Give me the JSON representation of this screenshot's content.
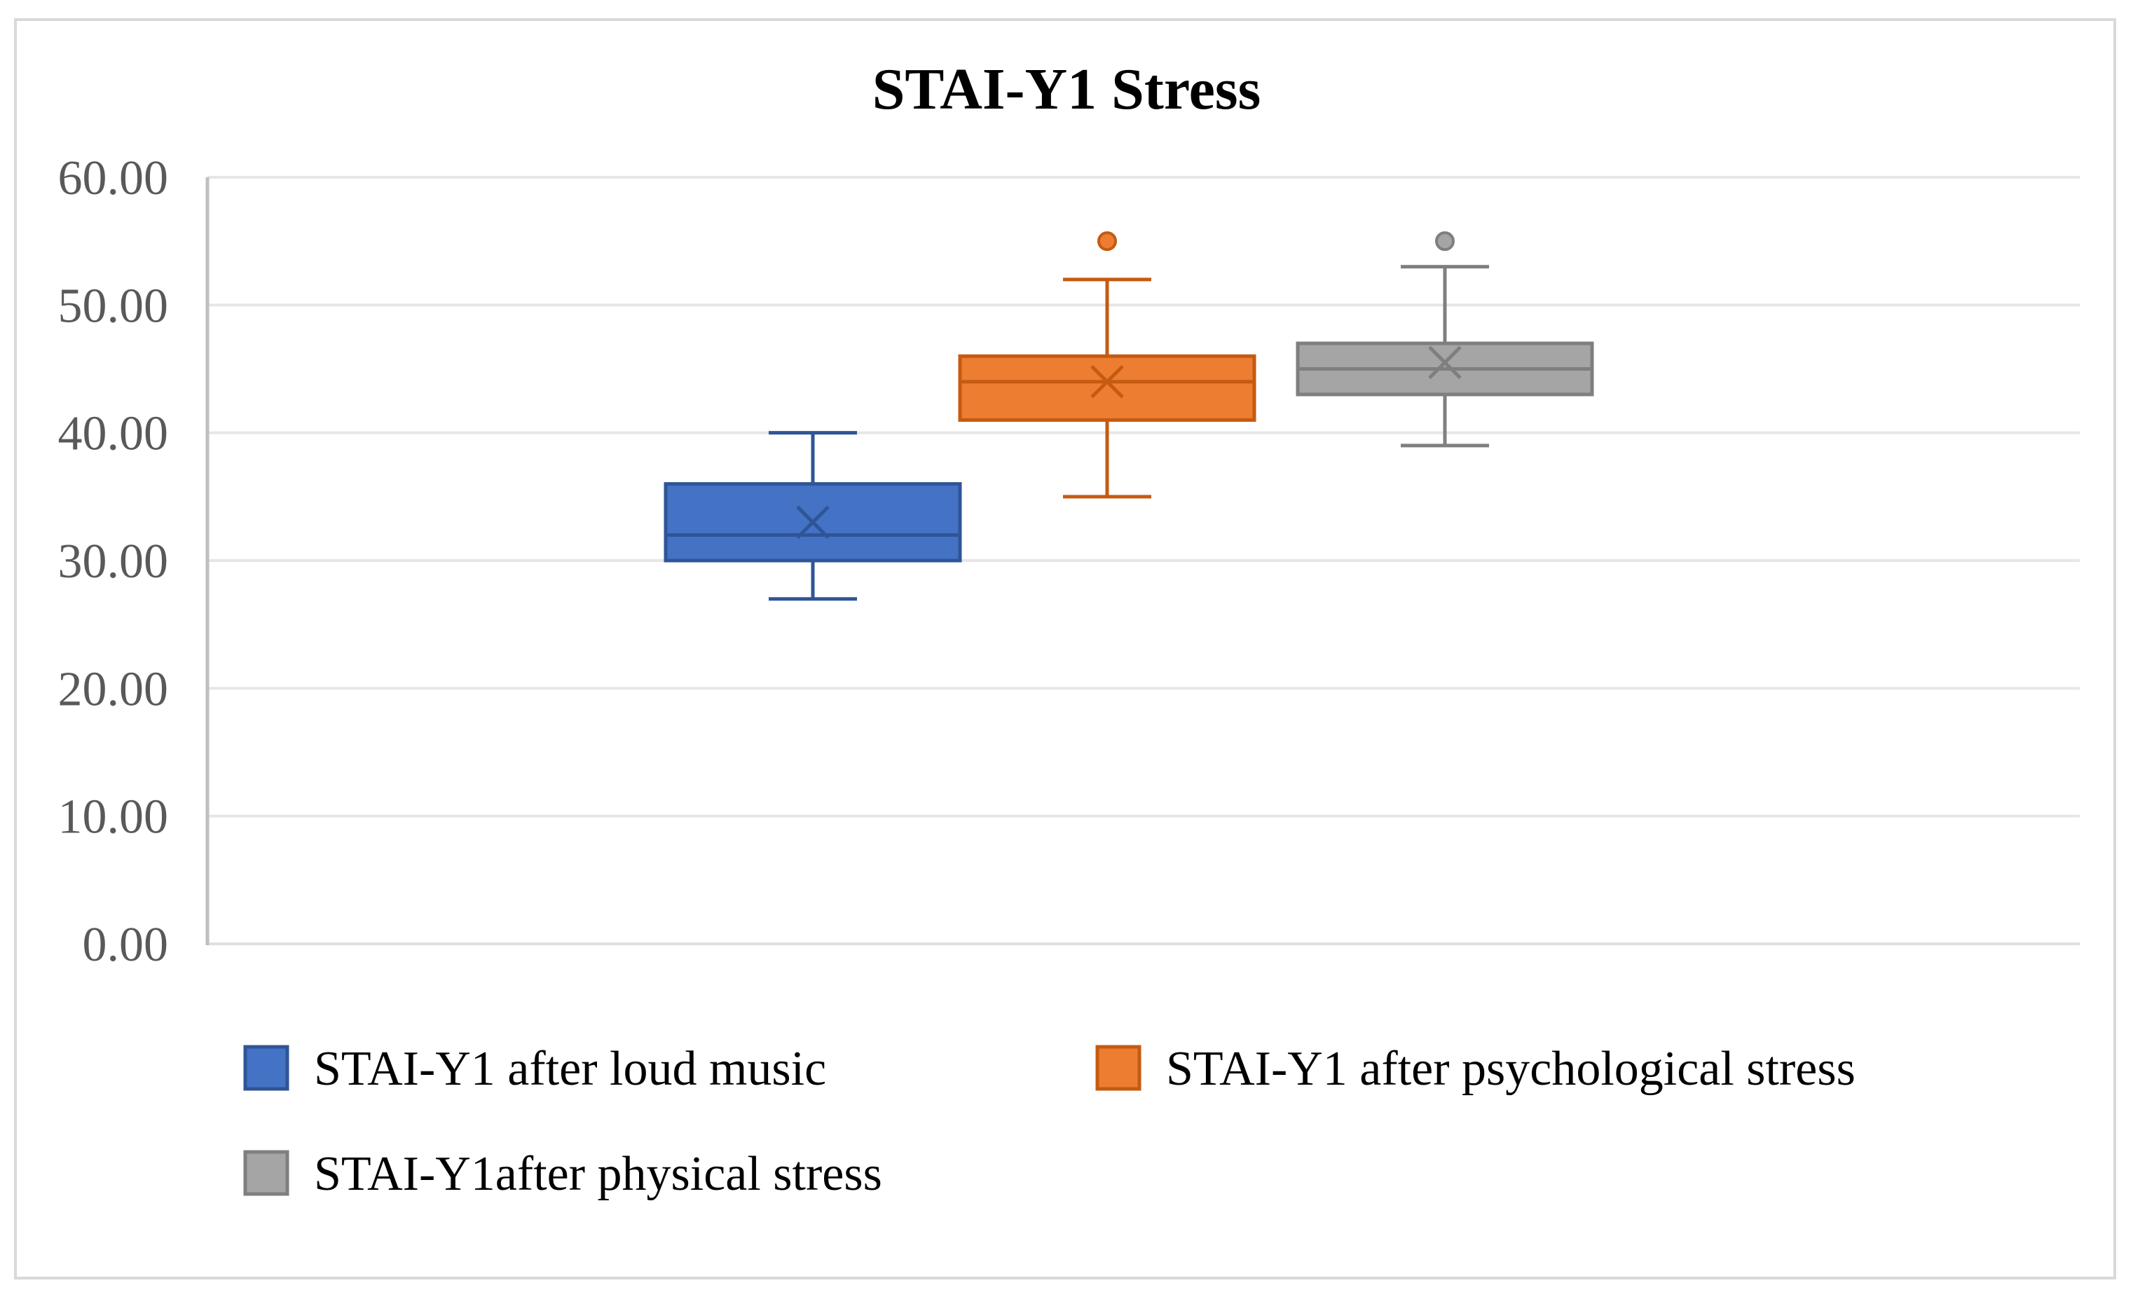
{
  "chart_data": {
    "type": "boxplot",
    "title": "STAI-Y1 Stress",
    "xlabel": "",
    "ylabel": "",
    "ylim": [
      0,
      60
    ],
    "yticks": [
      0,
      10,
      20,
      30,
      40,
      50,
      60
    ],
    "ytick_labels": [
      "0.00",
      "10.00",
      "20.00",
      "30.00",
      "40.00",
      "50.00",
      "60.00"
    ],
    "grid": true,
    "legend_position": "bottom",
    "series": [
      {
        "name": "STAI-Y1 after loud music",
        "color": "#4472c4",
        "stroke": "#2f5597",
        "min": 27,
        "q1": 30,
        "median": 32,
        "q3": 36,
        "max": 40,
        "mean": 33,
        "outliers": []
      },
      {
        "name": "STAI-Y1 after psychological stress",
        "color": "#ed7d31",
        "stroke": "#c55a11",
        "min": 35,
        "q1": 41,
        "median": 44,
        "q3": 46,
        "max": 52,
        "mean": 44,
        "outliers": [
          55
        ]
      },
      {
        "name": "STAI-Y1after physical stress",
        "color": "#a5a5a5",
        "stroke": "#7f7f7f",
        "min": 39,
        "q1": 43,
        "median": 45,
        "q3": 47,
        "max": 53,
        "mean": 45.5,
        "outliers": [
          55
        ]
      }
    ]
  }
}
